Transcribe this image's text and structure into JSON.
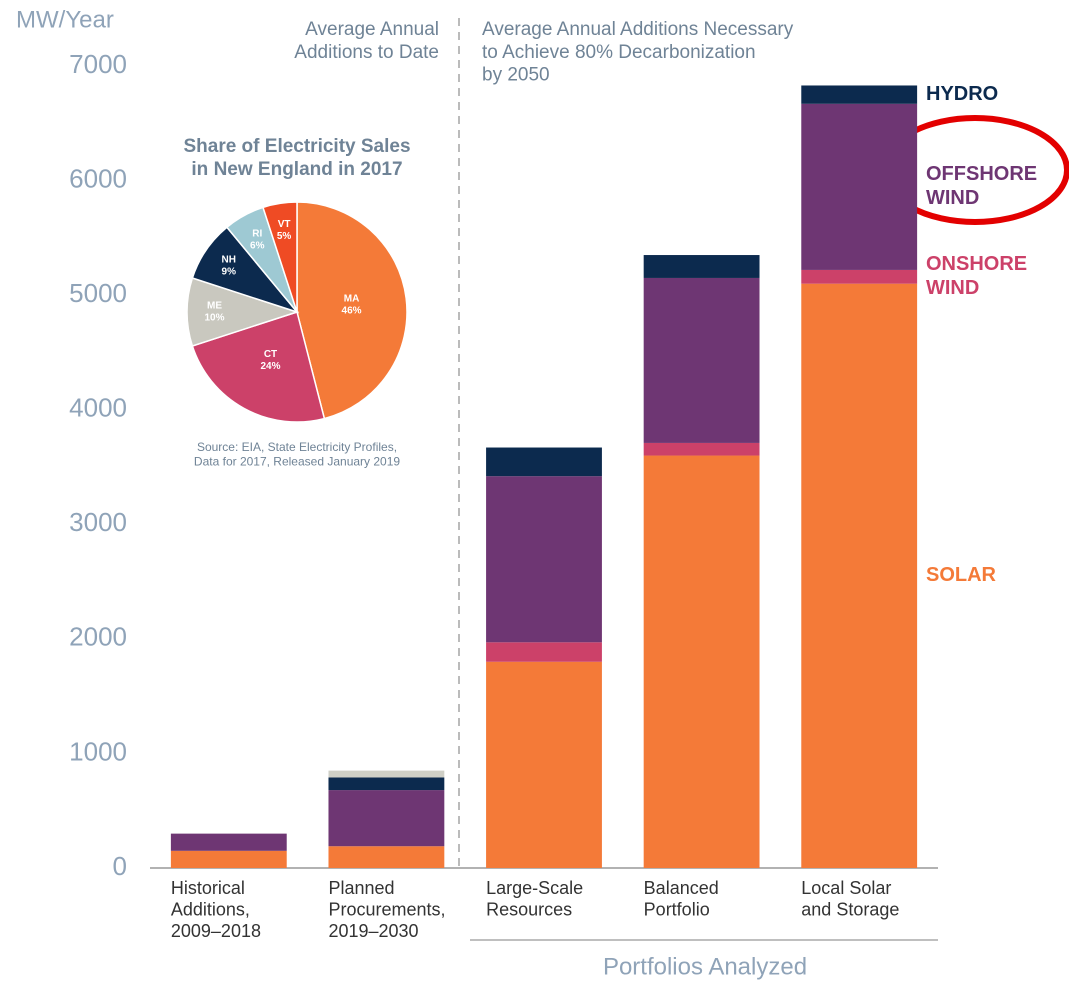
{
  "chart_data": [
    {
      "type": "stacked_bar",
      "ylabel": "MW/Year",
      "annotations": [
        "Average Annual\nAdditions to Date",
        "Average Annual Additions Necessary\nto Achieve 80% Decarbonization\nby 2050"
      ],
      "group_label": "Portfolios Analyzed",
      "categories": [
        "Historical\nAdditions,\n2009–2018",
        "Planned\nProcurements,\n2019–2030",
        "Large-Scale\nResources",
        "Balanced\nPortfolio",
        "Local Solar\nand Storage"
      ],
      "series": [
        {
          "name": "SOLAR",
          "color": "#f47a38",
          "values": [
            150,
            190,
            1800,
            3600,
            5100
          ]
        },
        {
          "name": "ONSHORE\nWIND",
          "color": "#cc4169",
          "values": [
            0,
            0,
            170,
            110,
            120
          ]
        },
        {
          "name": "OFFSHORE\nWIND",
          "color": "#6e3673",
          "values": [
            150,
            490,
            1450,
            1440,
            1450
          ]
        },
        {
          "name": "HYDRO",
          "color": "#0c2a4e",
          "values": [
            0,
            110,
            250,
            200,
            160
          ]
        },
        {
          "name": null,
          "color": "#cfcfc6",
          "values": [
            0,
            60,
            0,
            0,
            0
          ]
        }
      ],
      "ylim": [
        0,
        7000
      ],
      "yticks": [
        0,
        1000,
        2000,
        3000,
        4000,
        5000,
        6000,
        7000
      ],
      "grid": false
    },
    {
      "type": "pie",
      "title": "Share of Electricity Sales\nin New England in 2017",
      "source": "Source: EIA, State Electricity Profiles,\nData for 2017, Released January 2019",
      "categories": [
        "MA",
        "CT",
        "ME",
        "NH",
        "RI",
        "VT"
      ],
      "values": [
        46,
        24,
        10,
        9,
        6,
        5
      ],
      "value_labels": [
        "46%",
        "24%",
        "10%",
        "9%",
        "6%",
        "5%"
      ],
      "colors": [
        "#f47a38",
        "#cc4169",
        "#c9c8bf",
        "#0c2a4e",
        "#9ec9d3",
        "#ef4b24"
      ]
    }
  ]
}
